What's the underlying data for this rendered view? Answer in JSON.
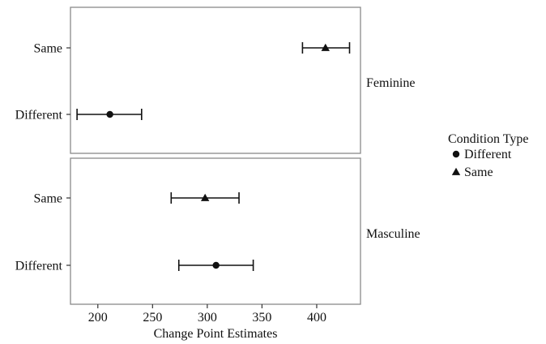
{
  "chart_data": {
    "type": "scatter",
    "subtype": "dot-and-whisker, faceted",
    "xlabel": "Change Point Estimates",
    "xlim": [
      175,
      440
    ],
    "x_ticks": [
      200,
      250,
      300,
      350,
      400
    ],
    "y_categories": [
      "Same",
      "Different"
    ],
    "legend": {
      "title": "Condition Type",
      "placement": "right",
      "entries": [
        {
          "name": "Different",
          "shape": "circle"
        },
        {
          "name": "Same",
          "shape": "triangle"
        }
      ]
    },
    "panels": [
      {
        "label": "Feminine",
        "points": [
          {
            "category": "Same",
            "estimate": 408,
            "lower": 387,
            "upper": 430,
            "shape": "triangle"
          },
          {
            "category": "Different",
            "estimate": 211,
            "lower": 181,
            "upper": 240,
            "shape": "circle"
          }
        ]
      },
      {
        "label": "Masculine",
        "points": [
          {
            "category": "Same",
            "estimate": 298,
            "lower": 267,
            "upper": 329,
            "shape": "triangle"
          },
          {
            "category": "Different",
            "estimate": 308,
            "lower": 274,
            "upper": 342,
            "shape": "circle"
          }
        ]
      }
    ],
    "grid": false,
    "color": "#111111"
  }
}
